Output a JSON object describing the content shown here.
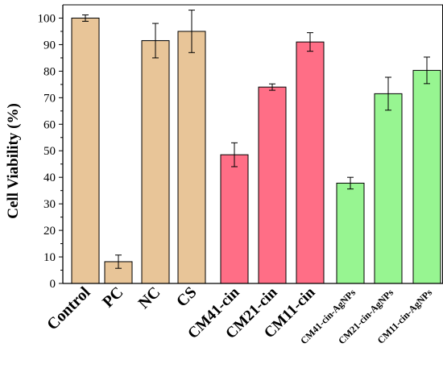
{
  "chart_data": {
    "type": "bar",
    "title": "",
    "xlabel": "",
    "ylabel": "Cell Viability (%)",
    "ylim": [
      0,
      105
    ],
    "yticks": [
      0,
      10,
      20,
      30,
      40,
      50,
      60,
      70,
      80,
      90,
      100
    ],
    "grid": false,
    "categories": [
      "Control",
      "PC",
      "NC",
      "CS",
      "CM41-cin",
      "CM21-cin",
      "CM11-cin",
      "CM41-cin-AgNPs",
      "CM21-cin-AgNPs",
      "CM11-cin-AgNPs"
    ],
    "values": [
      100,
      8.2,
      91.5,
      95,
      48.5,
      74,
      91,
      37.8,
      71.5,
      80.3
    ],
    "errors": [
      1.2,
      2.5,
      6.5,
      8,
      4.5,
      1.2,
      3.5,
      2.2,
      6.2,
      5
    ],
    "groups": [
      0,
      0,
      0,
      0,
      1,
      1,
      1,
      2,
      2,
      2
    ],
    "colors": [
      "#e8c598",
      "#ff6e86",
      "#97f591"
    ]
  }
}
